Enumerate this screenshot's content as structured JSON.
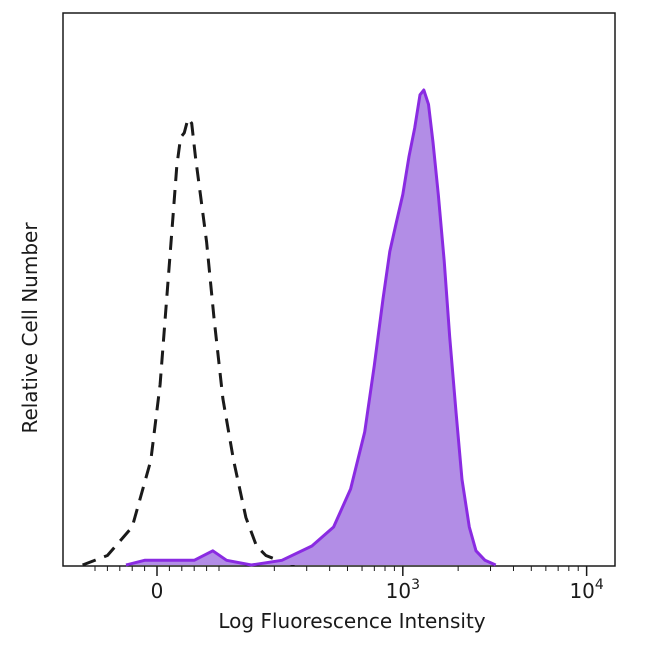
{
  "chart_data": {
    "type": "area",
    "title": "",
    "xlabel": "Log Fluorescence Intensity",
    "ylabel": "Relative Cell Number",
    "x_scale": "biexponential",
    "xlim": [
      -200,
      30000
    ],
    "ylim": [
      0,
      1
    ],
    "grid": false,
    "legend": "none",
    "x_ticks": [
      {
        "value": 0,
        "label": "0"
      },
      {
        "value": 1000,
        "base": "10",
        "exp": "3"
      },
      {
        "value": 10000,
        "base": "10",
        "exp": "4"
      }
    ],
    "series": [
      {
        "style": "dashed-outline",
        "color": "#1a1a1a",
        "points": [
          [
            -120,
            0.0
          ],
          [
            -80,
            0.02
          ],
          [
            -40,
            0.08
          ],
          [
            -10,
            0.22
          ],
          [
            5,
            0.38
          ],
          [
            15,
            0.55
          ],
          [
            25,
            0.72
          ],
          [
            32,
            0.84
          ],
          [
            38,
            0.9
          ],
          [
            44,
            0.91
          ],
          [
            50,
            0.94
          ],
          [
            56,
            0.93
          ],
          [
            62,
            0.86
          ],
          [
            70,
            0.78
          ],
          [
            80,
            0.68
          ],
          [
            92,
            0.52
          ],
          [
            105,
            0.35
          ],
          [
            120,
            0.22
          ],
          [
            140,
            0.1
          ],
          [
            160,
            0.04
          ],
          [
            180,
            0.02
          ],
          [
            210,
            0.01
          ],
          [
            260,
            0.0
          ]
        ]
      },
      {
        "style": "filled",
        "color": "#8a2be2",
        "fill": "#b28de6",
        "points": [
          [
            -50,
            0.0
          ],
          [
            -20,
            0.01
          ],
          [
            0,
            0.01
          ],
          [
            40,
            0.01
          ],
          [
            60,
            0.01
          ],
          [
            90,
            0.03
          ],
          [
            110,
            0.01
          ],
          [
            150,
            0.0
          ],
          [
            220,
            0.01
          ],
          [
            320,
            0.04
          ],
          [
            420,
            0.08
          ],
          [
            520,
            0.16
          ],
          [
            620,
            0.28
          ],
          [
            700,
            0.42
          ],
          [
            780,
            0.56
          ],
          [
            850,
            0.66
          ],
          [
            920,
            0.72
          ],
          [
            1000,
            0.78
          ],
          [
            1080,
            0.86
          ],
          [
            1160,
            0.92
          ],
          [
            1240,
            0.99
          ],
          [
            1300,
            1.0
          ],
          [
            1380,
            0.97
          ],
          [
            1460,
            0.89
          ],
          [
            1560,
            0.78
          ],
          [
            1680,
            0.64
          ],
          [
            1800,
            0.48
          ],
          [
            1950,
            0.32
          ],
          [
            2100,
            0.18
          ],
          [
            2300,
            0.08
          ],
          [
            2500,
            0.03
          ],
          [
            2800,
            0.01
          ],
          [
            3200,
            0.0
          ]
        ]
      }
    ]
  }
}
